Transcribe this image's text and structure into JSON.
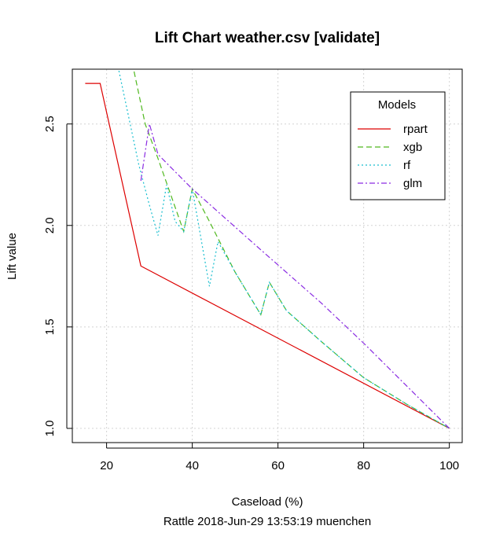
{
  "chart_data": {
    "type": "line",
    "title": "Lift Chart  weather.csv [validate]",
    "xlabel": "Caseload (%)",
    "ylabel": "Lift value",
    "subtitle": "Rattle 2018-Jun-29 13:53:19 muenchen",
    "xlim": [
      12,
      103
    ],
    "ylim": [
      0.93,
      2.77
    ],
    "xticks": [
      20,
      40,
      60,
      80,
      100
    ],
    "yticks": [
      1.0,
      1.5,
      2.0,
      2.5
    ],
    "xtick_labels": [
      "20",
      "40",
      "60",
      "80",
      "100"
    ],
    "ytick_labels": [
      "1.0",
      "1.5",
      "2.0",
      "2.5"
    ],
    "grid": true,
    "legend": {
      "title": "Models",
      "position": "top-right"
    },
    "series": [
      {
        "name": "rpart",
        "color": "#dd0000",
        "dash": "solid",
        "x": [
          15,
          18.5,
          28,
          100
        ],
        "y": [
          2.7,
          2.7,
          1.8,
          1.0
        ]
      },
      {
        "name": "xgb",
        "color": "#4fb81e",
        "dash": "longdash",
        "x": [
          26,
          29,
          32,
          38,
          40,
          44,
          50,
          56,
          58,
          62,
          70,
          80,
          90,
          100
        ],
        "y": [
          2.8,
          2.5,
          2.33,
          1.97,
          2.18,
          2.02,
          1.77,
          1.56,
          1.72,
          1.58,
          1.43,
          1.25,
          1.12,
          1.0
        ]
      },
      {
        "name": "rf",
        "color": "#17becf",
        "dash": "dotted",
        "x": [
          22.5,
          27.5,
          30,
          32,
          34,
          36,
          38,
          40,
          44,
          46,
          50,
          56,
          58,
          62,
          70,
          80,
          90,
          100
        ],
        "y": [
          2.8,
          2.3,
          2.1,
          1.95,
          2.2,
          2.02,
          1.97,
          2.18,
          1.7,
          1.92,
          1.77,
          1.56,
          1.72,
          1.58,
          1.43,
          1.25,
          1.12,
          1.0
        ]
      },
      {
        "name": "glm",
        "color": "#8a2be2",
        "dash": "dashdot",
        "x": [
          28,
          30,
          32,
          40,
          56,
          70,
          80,
          100
        ],
        "y": [
          2.22,
          2.5,
          2.35,
          2.18,
          1.88,
          1.62,
          1.42,
          1.0
        ]
      }
    ]
  }
}
